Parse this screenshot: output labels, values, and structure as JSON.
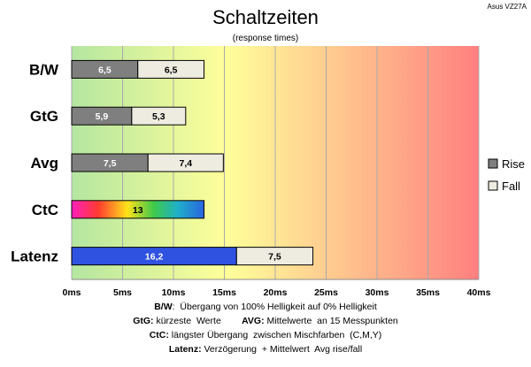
{
  "corner_label": "Asus VZ27A",
  "notes": [
    {
      "key": "B/W",
      "text": ":  Übergang von 100% Helligkeit auf 0% Helligkeit"
    },
    {
      "key": "GtG:",
      "text": " kürzeste  Werte        ",
      "key2": "AVG:",
      "text2": " Mittelwerte  an 15 Messpunkten"
    },
    {
      "key": "CtC:",
      "text": " längster Übergang  zwischen Mischfarben  (C,M,Y)"
    },
    {
      "key": "Latenz:",
      "text": " Verzögerung  + Mittelwert  Avg rise/fall"
    }
  ],
  "chart_data": {
    "type": "bar",
    "orientation": "horizontal",
    "stacked": true,
    "title": "Schaltzeiten",
    "subtitle": "(response times)",
    "categories": [
      "B/W",
      "GtG",
      "Avg",
      "CtC",
      "Latenz"
    ],
    "series": [
      {
        "name": "Rise",
        "color": "#7f7f7f",
        "values": [
          6.5,
          5.9,
          7.5,
          13,
          16.2
        ],
        "labels": [
          "6,5",
          "5,9",
          "7,5",
          "13",
          "16,2"
        ]
      },
      {
        "name": "Fall",
        "color": "#eeece1",
        "values": [
          6.5,
          5.3,
          7.4,
          null,
          7.5
        ],
        "labels": [
          "6,5",
          "5,3",
          "7,4",
          "",
          "7,5"
        ]
      }
    ],
    "special_fills": {
      "CtC": "rainbow",
      "Latenz": "#2f52e0"
    },
    "xlim": [
      0,
      40
    ],
    "xticks": [
      0,
      5,
      10,
      15,
      20,
      25,
      30,
      35,
      40
    ],
    "xtick_labels": [
      "0ms",
      "5ms",
      "10ms",
      "15ms",
      "20ms",
      "25ms",
      "30ms",
      "35ms",
      "40ms"
    ],
    "background_gradient": [
      "#b4e6a0",
      "#ffff9a",
      "#ff8080"
    ],
    "grid": true,
    "legend": "right"
  }
}
